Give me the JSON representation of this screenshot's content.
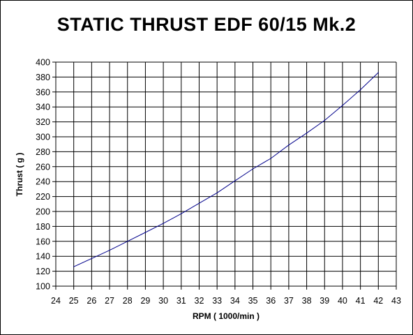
{
  "chart_data": {
    "type": "line",
    "title": "STATIC THRUST  EDF 60/15 Mk.2",
    "xlabel": "RPM ( 1000/min )",
    "ylabel": "Thrust ( g )",
    "xlim": [
      24,
      43
    ],
    "ylim": [
      100,
      400
    ],
    "x_ticks": [
      "24",
      "25",
      "26",
      "27",
      "28",
      "29",
      "30",
      "31",
      "32",
      "33",
      "34",
      "35",
      "36",
      "37",
      "38",
      "39",
      "40",
      "41",
      "42",
      "43"
    ],
    "y_ticks": [
      "100",
      "120",
      "140",
      "160",
      "180",
      "200",
      "220",
      "240",
      "260",
      "280",
      "300",
      "320",
      "340",
      "360",
      "380",
      "400"
    ],
    "grid": true,
    "series": [
      {
        "x": [
          25,
          26,
          27,
          28,
          29,
          30,
          31,
          32,
          33,
          34,
          35,
          36,
          37,
          38,
          39,
          40,
          41,
          42
        ],
        "y": [
          126,
          137,
          148,
          160,
          172,
          184,
          197,
          211,
          225,
          241,
          257,
          271,
          289,
          305,
          322,
          342,
          363,
          386
        ]
      }
    ],
    "colors": {
      "line": "#00008b",
      "grid": "#000000",
      "background": "#ffffff"
    }
  }
}
